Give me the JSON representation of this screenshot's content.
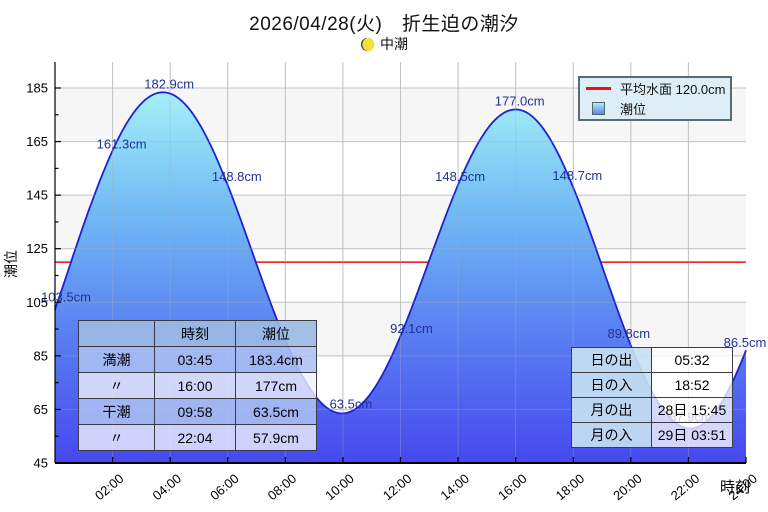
{
  "header": {
    "title": "2026/04/28(火)　折生迫の潮汐",
    "phase_label": "中潮"
  },
  "legend": {
    "items": [
      {
        "label": "平均水面 120.0cm",
        "swatch": "line"
      },
      {
        "label": "潮位",
        "swatch": "gradient"
      }
    ]
  },
  "axes": {
    "y_title": "潮位",
    "x_title": "時刻"
  },
  "colors": {
    "curve": "#2121cf",
    "fill_top": "#a7f3f9",
    "fill_mid": "#72bdf4",
    "fill_deep": "#5b82f2",
    "fill_bottom": "#4648ee",
    "mean_line": "#ee1111",
    "point_label": "#1f3299",
    "grid": "#cfcfcf",
    "band": "#f6f6f6",
    "moon_bright": "#f2e13c",
    "moon_dark": "#55544a"
  },
  "chart_data": {
    "type": "area",
    "title": "2026/04/28(火)　折生迫の潮汐",
    "xlabel": "時刻",
    "ylabel": "潮位",
    "xlim_hours": [
      0,
      24
    ],
    "ylim": [
      45,
      195
    ],
    "y_ticks": [
      45,
      65,
      85,
      105,
      125,
      145,
      165,
      185
    ],
    "x_tick_labels": [
      "02:00",
      "04:00",
      "06:00",
      "08:00",
      "10:00",
      "12:00",
      "14:00",
      "16:00",
      "18:00",
      "20:00",
      "22:00",
      "24:00"
    ],
    "mean_water_cm": 120.0,
    "series": [
      {
        "name": "潮位",
        "unit": "cm",
        "extremes_for_curve": [
          {
            "t": -3.0,
            "v": 45.0
          },
          {
            "t": 3.75,
            "v": 183.4
          },
          {
            "t": 9.97,
            "v": 63.5
          },
          {
            "t": 16.0,
            "v": 177.0
          },
          {
            "t": 22.07,
            "v": 57.9
          },
          {
            "t": 28.0,
            "v": 180.0
          }
        ],
        "labeled_points": [
          {
            "t": 0,
            "v": 103.5,
            "label": "103.5cm",
            "dx": 11,
            "dy": -9
          },
          {
            "t": 2,
            "v": 161.3,
            "label": "161.3cm",
            "dx": 9,
            "dy": -7
          },
          {
            "t": 4,
            "v": 182.9,
            "label": "182.9cm",
            "dx": -1,
            "dy": -9
          },
          {
            "t": 6,
            "v": 148.8,
            "label": "148.8cm",
            "dx": 9,
            "dy": -8
          },
          {
            "t": 10,
            "v": 63.5,
            "label": "63.5cm",
            "dx": 8,
            "dy": -9
          },
          {
            "t": 12,
            "v": 92.1,
            "label": "92.1cm",
            "dx": 11,
            "dy": -8
          },
          {
            "t": 14,
            "v": 148.5,
            "label": "148.5cm",
            "dx": 2,
            "dy": -9
          },
          {
            "t": 16,
            "v": 177.0,
            "label": "177.0cm",
            "dx": 4,
            "dy": -8
          },
          {
            "t": 18,
            "v": 148.7,
            "label": "148.7cm",
            "dx": 4,
            "dy": -9
          },
          {
            "t": 20,
            "v": 89.8,
            "label": "89.8cm",
            "dx": -2,
            "dy": -9
          },
          {
            "t": 22,
            "v": 57.9,
            "label": "57.9cm",
            "dx": 2,
            "dy": -11
          },
          {
            "t": 24,
            "v": 86.5,
            "label": "86.5cm",
            "dx": -1,
            "dy": -9
          }
        ]
      }
    ]
  },
  "tide_table": {
    "headers": [
      "",
      "時刻",
      "潮位"
    ],
    "rows": [
      {
        "label": "満潮",
        "time": "03:45",
        "level": "183.4cm"
      },
      {
        "label": "〃",
        "time": "16:00",
        "level": "177cm"
      },
      {
        "label": "干潮",
        "time": "09:58",
        "level": "63.5cm"
      },
      {
        "label": "〃",
        "time": "22:04",
        "level": "57.9cm"
      }
    ]
  },
  "sun_moon_table": {
    "rows": [
      {
        "label": "日の出",
        "value": "05:32"
      },
      {
        "label": "日の入",
        "value": "18:52"
      },
      {
        "label": "月の出",
        "value": "28日 15:45"
      },
      {
        "label": "月の入",
        "value": "29日 03:51"
      }
    ]
  }
}
